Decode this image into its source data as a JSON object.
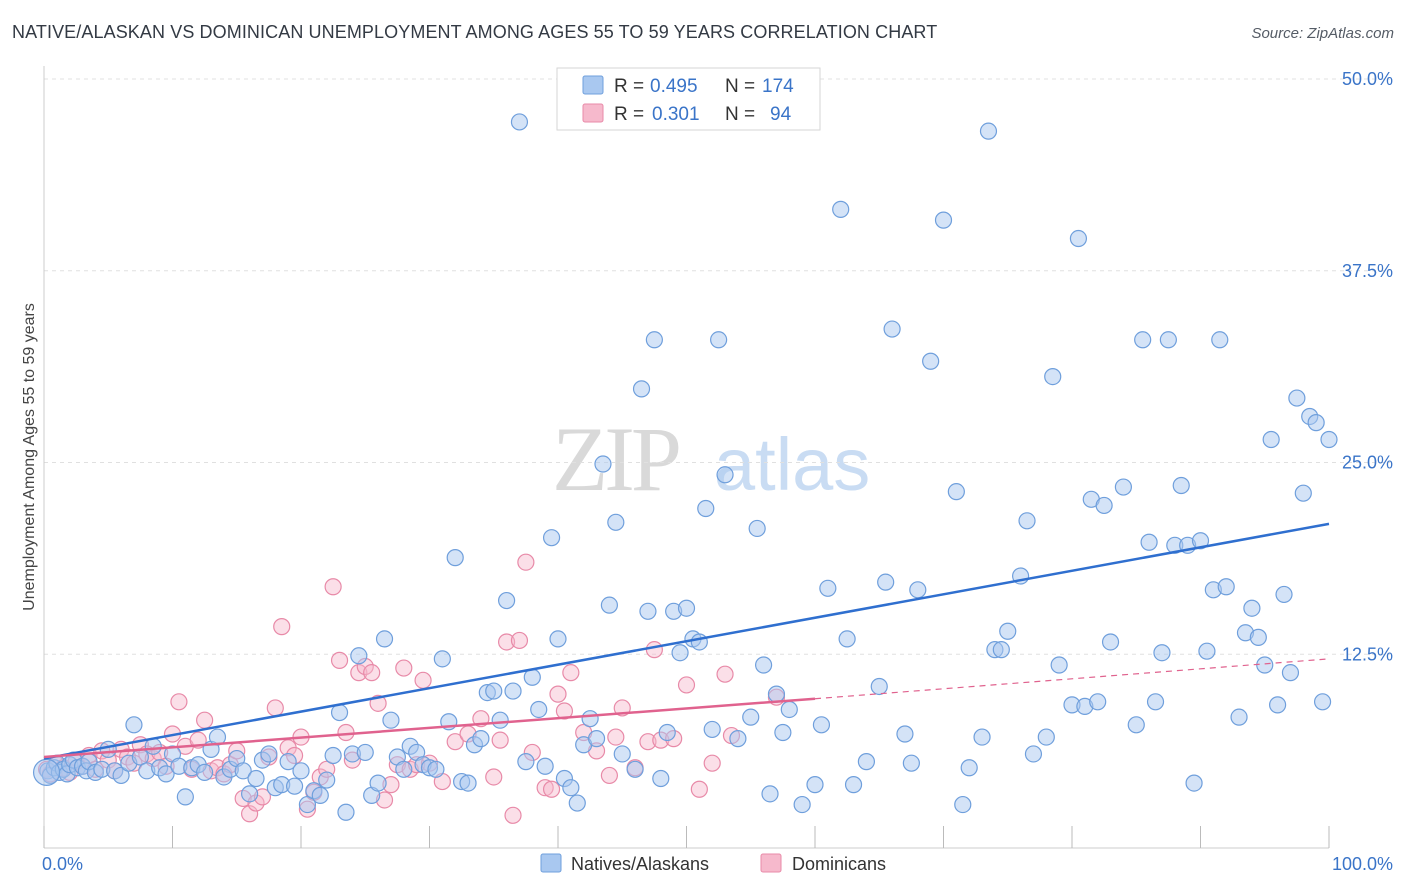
{
  "title": "NATIVE/ALASKAN VS DOMINICAN UNEMPLOYMENT AMONG AGES 55 TO 59 YEARS CORRELATION CHART",
  "source": "Source: ZipAtlas.com",
  "watermark": {
    "zip": "ZIP",
    "atlas": "atlas"
  },
  "legend_top": {
    "rows": [
      {
        "r_label": "R =",
        "r_value": "0.495",
        "n_label": "N =",
        "n_value": "174"
      },
      {
        "r_label": "R =",
        "r_value": "0.301",
        "n_label": "N =",
        "n_value": "94"
      }
    ]
  },
  "legend_bottom": [
    "Natives/Alaskans",
    "Dominicans"
  ],
  "colors": {
    "blue_fill": "#a9c8f0",
    "blue_stroke": "#6f9fdc",
    "blue_line": "#2f6fcf",
    "pink_fill": "#f6b9cc",
    "pink_stroke": "#e88aa8",
    "pink_line": "#e0628e",
    "value_text": "#3a74c8",
    "grid": "#e0e0e0"
  },
  "chart_data": {
    "type": "scatter",
    "title": "NATIVE/ALASKAN VS DOMINICAN UNEMPLOYMENT AMONG AGES 55 TO 59 YEARS CORRELATION CHART",
    "xlabel": "",
    "ylabel": "Unemployment Among Ages 55 to 59 years",
    "xlim": [
      0,
      100
    ],
    "ylim": [
      0,
      50
    ],
    "x_ticks": [
      {
        "value": 0,
        "label": "0.0%"
      },
      {
        "value": 100,
        "label": "100.0%"
      }
    ],
    "y_ticks": [
      {
        "value": 12.5,
        "label": "12.5%"
      },
      {
        "value": 25,
        "label": "25.0%"
      },
      {
        "value": 37.5,
        "label": "37.5%"
      },
      {
        "value": 50,
        "label": "50.0%"
      }
    ],
    "grid": true,
    "series": [
      {
        "name": "Natives/Alaskans",
        "color": "#a9c8f0",
        "trend": {
          "x": [
            0,
            100
          ],
          "y": [
            5.7,
            21.0
          ]
        },
        "points": [
          [
            0.3,
            4.9
          ],
          [
            0.5,
            4.6
          ],
          [
            0.8,
            5.1
          ],
          [
            1.0,
            5.4
          ],
          [
            1.2,
            4.8
          ],
          [
            1.5,
            5.0
          ],
          [
            1.8,
            4.7
          ],
          [
            2.0,
            5.3
          ],
          [
            2.3,
            5.6
          ],
          [
            2.6,
            5.1
          ],
          [
            3,
            5.2
          ],
          [
            3.3,
            4.9
          ],
          [
            3.5,
            5.5
          ],
          [
            4.0,
            4.8
          ],
          [
            4.5,
            5.0
          ],
          [
            5,
            6.3
          ],
          [
            5.5,
            4.9
          ],
          [
            6,
            4.6
          ],
          [
            6.6,
            5.4
          ],
          [
            7,
            7.9
          ],
          [
            7.5,
            5.8
          ],
          [
            8,
            4.9
          ],
          [
            8.5,
            6.5
          ],
          [
            9,
            5.1
          ],
          [
            9.5,
            4.7
          ],
          [
            10,
            6.0
          ],
          [
            10.5,
            5.2
          ],
          [
            11,
            3.2
          ],
          [
            11.5,
            5.1
          ],
          [
            12,
            5.3
          ],
          [
            12.5,
            4.8
          ],
          [
            13,
            6.3
          ],
          [
            13.5,
            7.1
          ],
          [
            14,
            4.5
          ],
          [
            14.5,
            5.0
          ],
          [
            15,
            5.7
          ],
          [
            15.5,
            4.9
          ],
          [
            16,
            3.4
          ],
          [
            16.5,
            4.4
          ],
          [
            17,
            5.6
          ],
          [
            17.5,
            6.0
          ],
          [
            18,
            3.8
          ],
          [
            18.5,
            4.0
          ],
          [
            19,
            5.5
          ],
          [
            19.5,
            3.9
          ],
          [
            20,
            4.9
          ],
          [
            20.5,
            2.7
          ],
          [
            21,
            3.6
          ],
          [
            21.5,
            3.3
          ],
          [
            22,
            4.3
          ],
          [
            22.5,
            5.9
          ],
          [
            23,
            8.7
          ],
          [
            23.5,
            2.2
          ],
          [
            24,
            6.0
          ],
          [
            24.5,
            12.4
          ],
          [
            25,
            6.1
          ],
          [
            25.5,
            3.3
          ],
          [
            26,
            4.1
          ],
          [
            26.5,
            13.5
          ],
          [
            27,
            8.2
          ],
          [
            27.5,
            5.8
          ],
          [
            28,
            5.0
          ],
          [
            28.5,
            6.5
          ],
          [
            29,
            6.1
          ],
          [
            29.5,
            5.3
          ],
          [
            30,
            5.1
          ],
          [
            30.5,
            5.0
          ],
          [
            31,
            12.2
          ],
          [
            31.5,
            8.1
          ],
          [
            32,
            18.8
          ],
          [
            32.5,
            4.2
          ],
          [
            33,
            4.1
          ],
          [
            33.5,
            6.6
          ],
          [
            34,
            7.0
          ],
          [
            34.5,
            10.0
          ],
          [
            35,
            10.1
          ],
          [
            35.5,
            8.2
          ],
          [
            36,
            16.0
          ],
          [
            36.5,
            10.1
          ],
          [
            37,
            47.2
          ],
          [
            37.5,
            5.5
          ],
          [
            38,
            11.0
          ],
          [
            38.5,
            8.9
          ],
          [
            39,
            5.2
          ],
          [
            39.5,
            20.1
          ],
          [
            40,
            13.5
          ],
          [
            40.5,
            4.4
          ],
          [
            41,
            3.8
          ],
          [
            41.5,
            2.8
          ],
          [
            42,
            6.6
          ],
          [
            42.5,
            8.3
          ],
          [
            43,
            7.0
          ],
          [
            43.5,
            24.9
          ],
          [
            44,
            15.7
          ],
          [
            44.5,
            21.1
          ],
          [
            45,
            6.0
          ],
          [
            46,
            5.0
          ],
          [
            46.5,
            29.8
          ],
          [
            47,
            15.3
          ],
          [
            47.5,
            33.0
          ],
          [
            48,
            4.4
          ],
          [
            48.5,
            7.4
          ],
          [
            49,
            15.3
          ],
          [
            49.5,
            12.6
          ],
          [
            50,
            15.5
          ],
          [
            50.5,
            13.5
          ],
          [
            51,
            13.3
          ],
          [
            51.5,
            22.0
          ],
          [
            52,
            7.6
          ],
          [
            52.5,
            33.0
          ],
          [
            53,
            24.2
          ],
          [
            54,
            7.0
          ],
          [
            55,
            8.4
          ],
          [
            55.5,
            20.7
          ],
          [
            56,
            11.8
          ],
          [
            56.5,
            3.4
          ],
          [
            57,
            9.9
          ],
          [
            57.5,
            7.4
          ],
          [
            58,
            8.9
          ],
          [
            59,
            2.7
          ],
          [
            60,
            4.0
          ],
          [
            60.5,
            7.9
          ],
          [
            61,
            16.8
          ],
          [
            62,
            41.5
          ],
          [
            62.5,
            13.5
          ],
          [
            63,
            4.0
          ],
          [
            64,
            5.5
          ],
          [
            65,
            10.4
          ],
          [
            65.5,
            17.2
          ],
          [
            66,
            33.7
          ],
          [
            67,
            7.3
          ],
          [
            67.5,
            5.4
          ],
          [
            68,
            16.7
          ],
          [
            69,
            31.6
          ],
          [
            70,
            40.8
          ],
          [
            71,
            23.1
          ],
          [
            71.5,
            2.7
          ],
          [
            72,
            5.1
          ],
          [
            73,
            7.1
          ],
          [
            73.5,
            46.6
          ],
          [
            74,
            12.8
          ],
          [
            74.5,
            12.8
          ],
          [
            75,
            14.0
          ],
          [
            76,
            17.6
          ],
          [
            76.5,
            21.2
          ],
          [
            77,
            6.0
          ],
          [
            78,
            7.1
          ],
          [
            78.5,
            30.6
          ],
          [
            79,
            11.8
          ],
          [
            80,
            9.2
          ],
          [
            80.5,
            39.6
          ],
          [
            81,
            9.1
          ],
          [
            81.5,
            22.6
          ],
          [
            82,
            9.4
          ],
          [
            82.5,
            22.2
          ],
          [
            83,
            13.3
          ],
          [
            84,
            23.4
          ],
          [
            85,
            7.9
          ],
          [
            85.5,
            33.0
          ],
          [
            86,
            19.8
          ],
          [
            86.5,
            9.4
          ],
          [
            87,
            12.6
          ],
          [
            87.5,
            33.0
          ],
          [
            88,
            19.6
          ],
          [
            88.5,
            23.5
          ],
          [
            89,
            19.6
          ],
          [
            89.5,
            4.1
          ],
          [
            90,
            19.9
          ],
          [
            90.5,
            12.7
          ],
          [
            91,
            16.7
          ],
          [
            91.5,
            33.0
          ],
          [
            92,
            16.9
          ],
          [
            93,
            8.4
          ],
          [
            93.5,
            13.9
          ],
          [
            94,
            15.5
          ],
          [
            94.5,
            13.6
          ],
          [
            95,
            11.8
          ],
          [
            95.5,
            26.5
          ],
          [
            96,
            9.2
          ],
          [
            96.5,
            16.4
          ],
          [
            97,
            11.3
          ],
          [
            97.5,
            29.2
          ],
          [
            98,
            23.0
          ],
          [
            98.5,
            28.0
          ],
          [
            99,
            27.6
          ],
          [
            99.5,
            9.4
          ],
          [
            100,
            26.5
          ],
          [
            59.5,
            50.0
          ]
        ]
      },
      {
        "name": "Dominicans",
        "color": "#f6b9cc",
        "trend": {
          "x": [
            0,
            60
          ],
          "y": [
            5.8,
            9.6
          ]
        },
        "trend_dashed": {
          "x": [
            60,
            100
          ],
          "y": [
            9.6,
            12.2
          ]
        },
        "points": [
          [
            0.2,
            5.0
          ],
          [
            0.5,
            4.7
          ],
          [
            1,
            5.3
          ],
          [
            1.5,
            5.1
          ],
          [
            2,
            4.8
          ],
          [
            2.5,
            5.5
          ],
          [
            3,
            5.2
          ],
          [
            3.5,
            5.9
          ],
          [
            4,
            5.0
          ],
          [
            4.5,
            6.2
          ],
          [
            5,
            5.6
          ],
          [
            5.5,
            4.9
          ],
          [
            6,
            6.3
          ],
          [
            6.5,
            5.8
          ],
          [
            7,
            5.4
          ],
          [
            7.5,
            6.6
          ],
          [
            8,
            6.0
          ],
          [
            8.5,
            5.7
          ],
          [
            9,
            6.1
          ],
          [
            9.5,
            5.2
          ],
          [
            10,
            7.3
          ],
          [
            10.5,
            9.4
          ],
          [
            11,
            6.5
          ],
          [
            11.5,
            5.0
          ],
          [
            12,
            6.9
          ],
          [
            12.5,
            8.2
          ],
          [
            13,
            4.9
          ],
          [
            13.5,
            5.1
          ],
          [
            14,
            4.7
          ],
          [
            14.5,
            5.3
          ],
          [
            15,
            6.2
          ],
          [
            15.5,
            3.1
          ],
          [
            16,
            2.1
          ],
          [
            16.5,
            2.8
          ],
          [
            17,
            3.2
          ],
          [
            17.5,
            5.8
          ],
          [
            18,
            9.0
          ],
          [
            18.5,
            14.3
          ],
          [
            19,
            6.4
          ],
          [
            19.5,
            5.9
          ],
          [
            20,
            7.1
          ],
          [
            20.5,
            2.4
          ],
          [
            21,
            3.5
          ],
          [
            21.5,
            4.5
          ],
          [
            22,
            5.0
          ],
          [
            22.5,
            16.9
          ],
          [
            23,
            12.1
          ],
          [
            23.5,
            7.4
          ],
          [
            24,
            5.6
          ],
          [
            24.5,
            11.3
          ],
          [
            25,
            11.7
          ],
          [
            25.5,
            11.3
          ],
          [
            26,
            9.3
          ],
          [
            26.5,
            3.0
          ],
          [
            27,
            4.0
          ],
          [
            27.5,
            5.3
          ],
          [
            28,
            11.6
          ],
          [
            28.5,
            5.0
          ],
          [
            29,
            5.3
          ],
          [
            29.5,
            10.8
          ],
          [
            30,
            5.4
          ],
          [
            31,
            4.2
          ],
          [
            32,
            6.8
          ],
          [
            33,
            7.3
          ],
          [
            34,
            8.3
          ],
          [
            35,
            4.5
          ],
          [
            35.5,
            6.9
          ],
          [
            36,
            13.3
          ],
          [
            36.5,
            2.0
          ],
          [
            37,
            13.4
          ],
          [
            37.5,
            18.5
          ],
          [
            38,
            6.1
          ],
          [
            39,
            3.8
          ],
          [
            39.5,
            3.7
          ],
          [
            40,
            9.9
          ],
          [
            40.5,
            8.8
          ],
          [
            41,
            11.3
          ],
          [
            42,
            7.4
          ],
          [
            43,
            6.2
          ],
          [
            44,
            4.6
          ],
          [
            44.5,
            7.1
          ],
          [
            45,
            9.0
          ],
          [
            46,
            5.1
          ],
          [
            47,
            6.8
          ],
          [
            47.5,
            12.8
          ],
          [
            48,
            6.9
          ],
          [
            49,
            7.0
          ],
          [
            50,
            10.5
          ],
          [
            51,
            3.7
          ],
          [
            52,
            5.4
          ],
          [
            53,
            11.2
          ],
          [
            53.5,
            7.2
          ],
          [
            57,
            9.7
          ]
        ]
      }
    ]
  }
}
